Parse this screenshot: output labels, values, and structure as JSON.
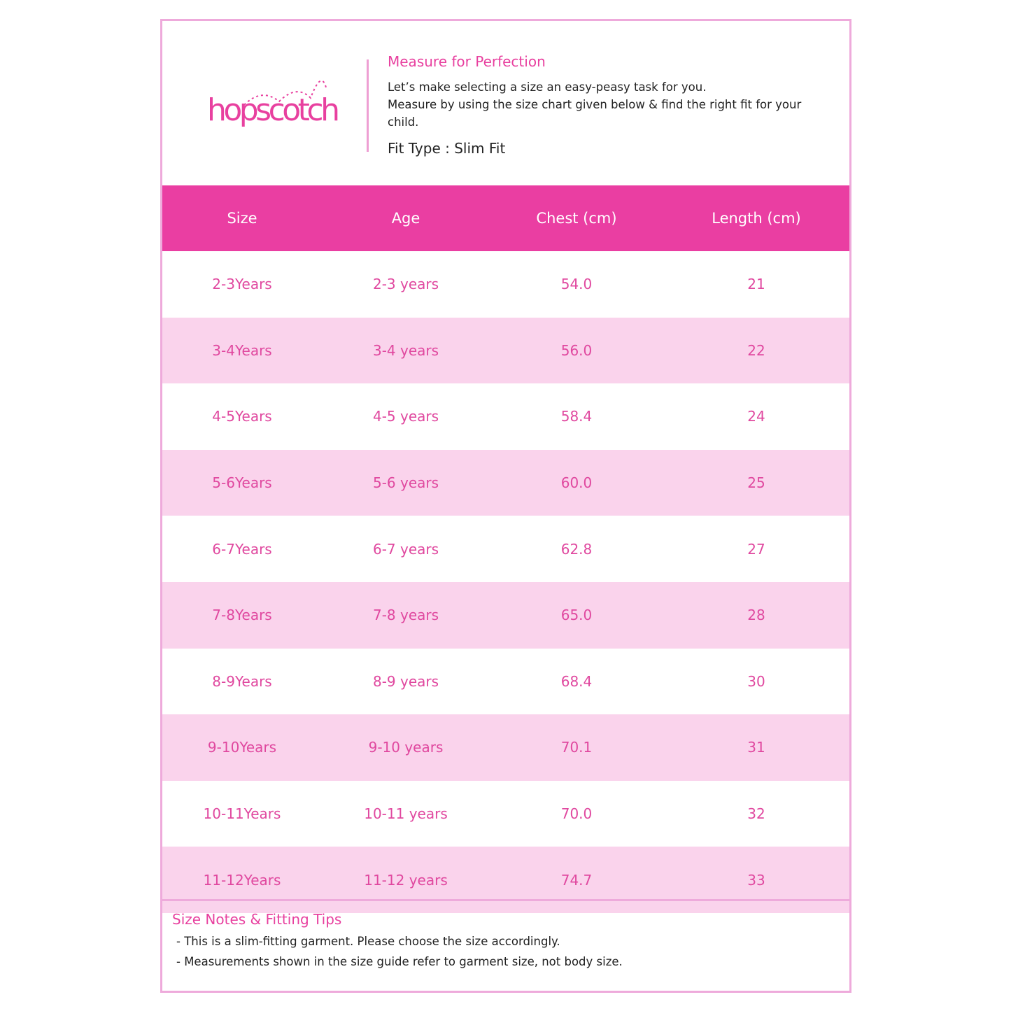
{
  "brand": {
    "logo_text": "hopscotch",
    "color": "#e8409f"
  },
  "header": {
    "title": "Measure for Perfection",
    "intro_line1": "Let’s make selecting a size an easy-peasy task for you.",
    "intro_line2": "Measure by using the size chart given below & find the right fit for your child.",
    "fit_type": "Fit Type : Slim Fit"
  },
  "table": {
    "columns": [
      "Size",
      "Age",
      "Chest (cm)",
      "Length (cm)"
    ],
    "rows": [
      [
        "2-3Years",
        "2-3 years",
        "54.0",
        "21"
      ],
      [
        "3-4Years",
        "3-4 years",
        "56.0",
        "22"
      ],
      [
        "4-5Years",
        "4-5 years",
        "58.4",
        "24"
      ],
      [
        "5-6Years",
        "5-6 years",
        "60.0",
        "25"
      ],
      [
        "6-7Years",
        "6-7 years",
        "62.8",
        "27"
      ],
      [
        "7-8Years",
        "7-8 years",
        "65.0",
        "28"
      ],
      [
        "8-9Years",
        "8-9 years",
        "68.4",
        "30"
      ],
      [
        "9-10Years",
        "9-10 years",
        "70.1",
        "31"
      ],
      [
        "10-11Years",
        "10-11 years",
        "70.0",
        "32"
      ],
      [
        "11-12Years",
        "11-12 years",
        "74.7",
        "33"
      ]
    ]
  },
  "footer": {
    "title": "Size Notes & Fitting Tips",
    "notes": [
      "- This is a slim-fitting garment. Please choose the size accordingly.",
      "- Measurements shown in the size guide refer to garment size, not body size."
    ]
  }
}
